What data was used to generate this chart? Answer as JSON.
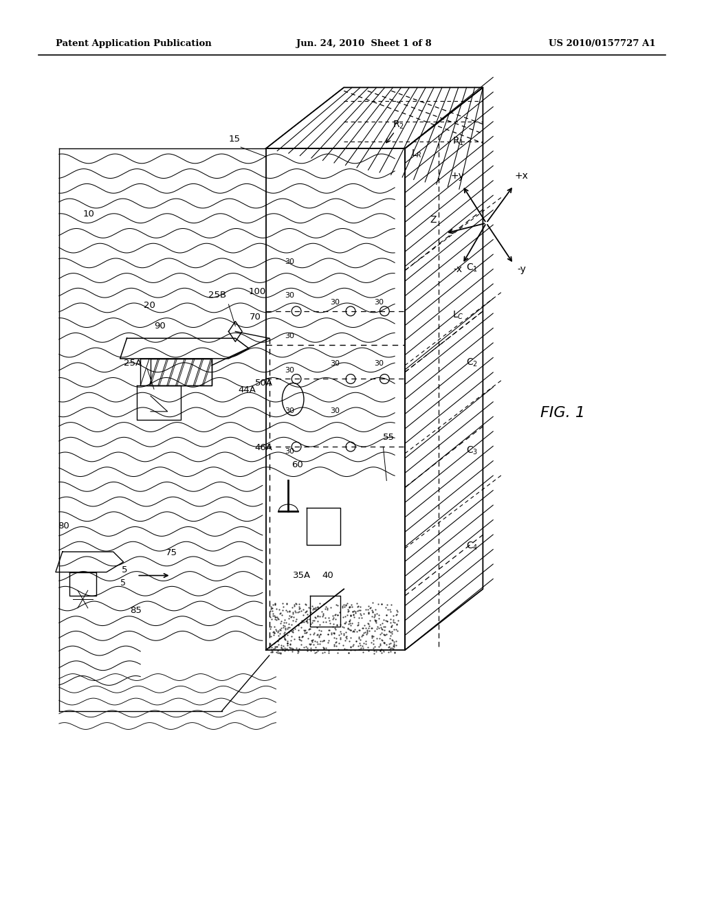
{
  "bg_color": "#ffffff",
  "line_color": "#000000",
  "header_left": "Patent Application Publication",
  "header_mid": "Jun. 24, 2010  Sheet 1 of 8",
  "header_right": "US 2010/0157727 A1",
  "fig_label": "FIG. 1"
}
